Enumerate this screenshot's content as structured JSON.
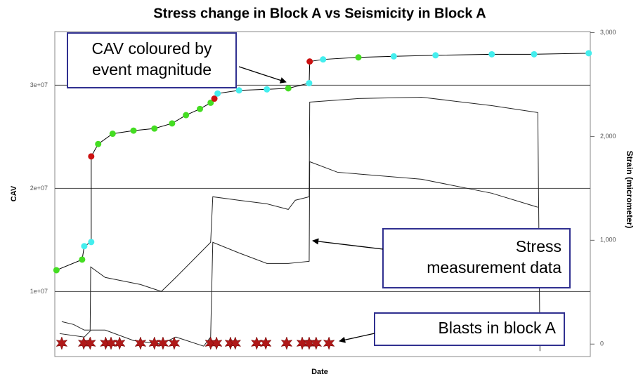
{
  "chart_data": {
    "type": "line",
    "title": "Stress change in Block A vs Seismicity in Block A",
    "ylabel": "CAV",
    "y2label": "Strain (micrometer)",
    "xlabel": "Date",
    "xlim": [
      0,
      100
    ],
    "ylim": [
      3700000,
      35200000
    ],
    "yticks": [
      {
        "value": 10000000,
        "label": "1e+07"
      },
      {
        "value": 20000000,
        "label": "2e+07"
      },
      {
        "value": 30000000,
        "label": "3e+07"
      }
    ],
    "y2lim": [
      -120,
      3010
    ],
    "y2ticks": [
      0,
      {
        "value": 1000,
        "label": "1,000"
      },
      {
        "value": 2000,
        "label": "2,000"
      },
      {
        "value": 3000,
        "label": "3,000"
      }
    ],
    "grid": true,
    "series": [
      {
        "color": "#000000",
        "x": [
          0.3,
          5.1,
          5.5,
          6.8,
          6.8,
          8.1,
          10.8,
          14.7,
          18.6,
          21.9,
          24.5,
          27.1,
          29.1,
          29.8,
          30.4,
          34.4,
          39.6,
          43.6,
          47.5,
          47.6,
          50.1,
          56.7,
          63.3,
          71.1,
          81.6,
          89.5,
          99.7
        ],
        "values": [
          12070000,
          13100000,
          14400000,
          14800000,
          23100000,
          24300000,
          25300000,
          25600000,
          25800000,
          26300000,
          27100000,
          27700000,
          28300000,
          28700000,
          29200000,
          29500000,
          29600000,
          29700000,
          30200000,
          32300000,
          32500000,
          32700000,
          32800000,
          32900000,
          33000000,
          33000000,
          33100000
        ],
        "point_colors": [
          "#44dd22",
          "#44dd22",
          "#44eeee",
          "#44eeee",
          "#cc1111",
          "#44dd22",
          "#44dd22",
          "#44dd22",
          "#44dd22",
          "#44dd22",
          "#44dd22",
          "#44dd22",
          "#44dd22",
          "#cc1111",
          "#44eeee",
          "#44eeee",
          "#44eeee",
          "#44dd22",
          "#44eeee",
          "#cc1111",
          "#44eeee",
          "#44dd22",
          "#44eeee",
          "#44eeee",
          "#44eeee",
          "#44eeee",
          "#44eeee"
        ]
      },
      {
        "color": "#222222",
        "axis": "y2",
        "x": [
          1.3,
          3.5,
          5.5,
          6.6,
          6.7,
          9.4,
          16.0,
          19.9,
          22.6,
          26.5,
          29.1,
          29.5,
          34.4,
          39.6,
          43.6,
          44.9,
          47.5,
          47.6,
          56.7,
          68.5,
          81.6,
          90.2,
          90.6
        ],
        "values": [
          216,
          189,
          135,
          135,
          743,
          642,
          574,
          507,
          642,
          845,
          980,
          1419,
          1385,
          1351,
          1297,
          1385,
          1419,
          2331,
          2365,
          2378,
          2297,
          2230,
          -68
        ]
      },
      {
        "color": "#222222",
        "axis": "y2",
        "x": [
          0.9,
          5.5,
          6.8,
          9.4,
          14.7,
          19.9,
          22.6,
          27.8,
          29.1,
          29.5,
          34.4,
          39.6,
          43.6,
          47.5,
          47.6,
          52.8,
          68.5,
          81.6,
          90.2
        ],
        "values": [
          101,
          68,
          135,
          135,
          34,
          0,
          68,
          -20,
          68,
          980,
          878,
          777,
          777,
          797,
          1757,
          1655,
          1588,
          1453,
          1318
        ]
      }
    ],
    "blasts": {
      "color": "#b01818",
      "x": [
        1.3,
        5.4,
        6.6,
        9.5,
        10.5,
        12.1,
        16.0,
        18.6,
        20.2,
        22.3,
        29.1,
        30.2,
        32.8,
        33.7,
        37.7,
        39.4,
        43.3,
        46.2,
        47.5,
        48.8,
        51.2
      ]
    },
    "annotations": [
      {
        "lines": [
          "CAV coloured by",
          "event magnitude"
        ]
      },
      {
        "lines": [
          "Stress",
          "measurement data"
        ]
      },
      {
        "lines": [
          "Blasts in block A"
        ]
      }
    ]
  }
}
